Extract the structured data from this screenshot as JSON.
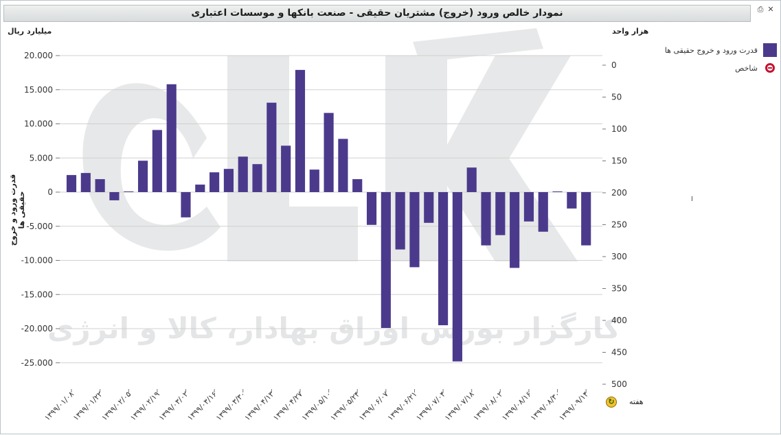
{
  "window": {
    "title": "نمودار خالص ورود (خروج) مشتریان حقیقی - صنعت بانکها و موسسات اعتباری",
    "icons": [
      "printer-icon",
      "close-icon"
    ]
  },
  "axes": {
    "left_unit": "میلیارد ریال",
    "right_unit": "هزار واحد",
    "left_title": "قدرت ورود و خروج حقیقی ها",
    "x_title": "هفته"
  },
  "legend": {
    "items": [
      {
        "label": "قدرت ورود و خروج حقیقی ها",
        "color": "#4b3a8c",
        "kind": "bar"
      },
      {
        "label": "شاخص",
        "color": "#c8102e",
        "kind": "marker"
      }
    ]
  },
  "watermark": {
    "text": "کارگزار بورس اوراق بهادار، کالا و انرژی"
  },
  "chart_data": {
    "type": "bar",
    "title": "نمودار خالص ورود (خروج) مشتریان حقیقی - صنعت بانکها و موسسات اعتباری",
    "ylabel": "قدرت ورود و خروج حقیقی ها",
    "xlabel": "هفته",
    "ylim": [
      -28000,
      20000
    ],
    "yticks": [
      "20.000",
      "15.000",
      "10.000",
      "5.000",
      "0",
      "-5.000",
      "-10.000",
      "-15.000",
      "-20.000",
      "-25.000"
    ],
    "ytick_values": [
      20000,
      15000,
      10000,
      5000,
      0,
      -5000,
      -10000,
      -15000,
      -20000,
      -25000
    ],
    "y2lim": [
      0,
      500
    ],
    "y2ticks": [
      "0",
      "50",
      "100",
      "150",
      "200",
      "250",
      "300",
      "350",
      "400",
      "450",
      "500"
    ],
    "y2tick_values": [
      0,
      50,
      100,
      150,
      200,
      250,
      300,
      350,
      400,
      450,
      500
    ],
    "xticks": [
      "۱۳۹۹/۰۱/۰۸",
      "۱۳۹۹/۰۱/۲۲",
      "۱۳۹۹/۰۲/۰۵",
      "۱۳۹۹/۰۲/۱۹",
      "۱۳۹۹/۰۳/۰۲",
      "۱۳۹۹/۰۳/۱۶",
      "۱۳۹۹/۰۳/۳۰",
      "۱۳۹۹/۰۴/۱۳",
      "۱۳۹۹/۰۴/۲۷",
      "۱۳۹۹/۰۵/۱۰",
      "۱۳۹۹/۰۵/۲۴",
      "۱۳۹۹/۰۶/۰۷",
      "۱۳۹۹/۰۶/۲۱",
      "۱۳۹۹/۰۷/۰۴",
      "۱۳۹۹/۰۷/۱۸",
      "۱۳۹۹/۰۸/۰۲",
      "۱۳۹۹/۰۸/۱۶",
      "۱۳۹۹/۰۸/۳۰",
      "۱۳۹۹/۰۹/۱۴"
    ],
    "grid": true,
    "series": [
      {
        "name": "قدرت ورود و خروج حقیقی ها",
        "color": "#4b3a8c",
        "values": [
          2500,
          2800,
          1900,
          -1200,
          100,
          4600,
          9100,
          15800,
          -3700,
          1100,
          2900,
          3400,
          5200,
          4100,
          13100,
          6800,
          17900,
          3300,
          11600,
          7800,
          1900,
          -4800,
          -19900,
          -8400,
          -11000,
          -4500,
          -19500,
          -24800,
          3600,
          -7800,
          -6300,
          -11100,
          -4300,
          -5800,
          100,
          -2400,
          -7800
        ]
      }
    ]
  }
}
